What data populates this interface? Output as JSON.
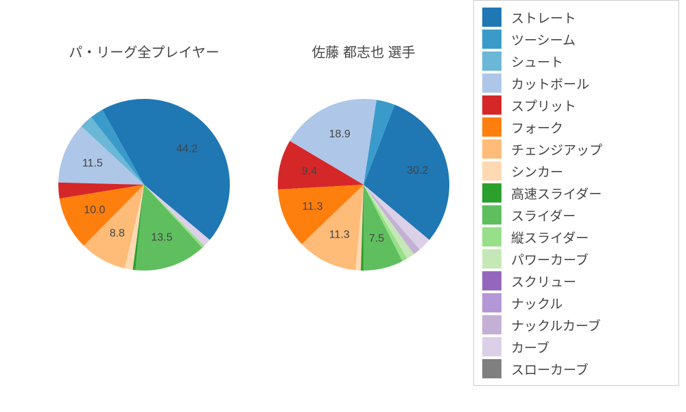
{
  "background_color": "#ffffff",
  "text_color": "#444444",
  "title_fontsize": 20,
  "label_fontsize": 16,
  "legend_fontsize": 19,
  "legend_border_color": "#cccccc",
  "pie_radius": 125,
  "pie_label_radius_factor": 0.65,
  "pie_min_label_value": 6.0,
  "pie_start_angle_deg": -40,
  "pies": [
    {
      "title": "パ・リーグ全プレイヤー",
      "slices": [
        {
          "value": 44.2,
          "color": "#1f77b4"
        },
        {
          "value": 2.5,
          "color": "#3a9bcb"
        },
        {
          "value": 2.5,
          "color": "#6bb7d6"
        },
        {
          "value": 11.5,
          "color": "#aec7e8"
        },
        {
          "value": 3.0,
          "color": "#d62728"
        },
        {
          "value": 10.0,
          "color": "#ff7f0e"
        },
        {
          "value": 8.8,
          "color": "#ffbb78"
        },
        {
          "value": 1.5,
          "color": "#ffd9b3"
        },
        {
          "value": 0.5,
          "color": "#2ca02c"
        },
        {
          "value": 13.5,
          "color": "#5fbf5f"
        },
        {
          "value": 0.5,
          "color": "#98df8a"
        },
        {
          "value": 0.0,
          "color": "#c5e8b7"
        },
        {
          "value": 0.0,
          "color": "#9467bd"
        },
        {
          "value": 0.0,
          "color": "#b497d6"
        },
        {
          "value": 0.0,
          "color": "#c5b0d5"
        },
        {
          "value": 1.5,
          "color": "#dcd0e8"
        },
        {
          "value": 0.0,
          "color": "#7f7f7f"
        }
      ]
    },
    {
      "title": "佐藤 都志也  選手",
      "slices": [
        {
          "value": 30.2,
          "color": "#1f77b4"
        },
        {
          "value": 3.5,
          "color": "#3a9bcb"
        },
        {
          "value": 0.0,
          "color": "#6bb7d6"
        },
        {
          "value": 18.9,
          "color": "#aec7e8"
        },
        {
          "value": 9.4,
          "color": "#d62728"
        },
        {
          "value": 11.3,
          "color": "#ff7f0e"
        },
        {
          "value": 11.3,
          "color": "#ffbb78"
        },
        {
          "value": 1.0,
          "color": "#ffd9b3"
        },
        {
          "value": 0.5,
          "color": "#2ca02c"
        },
        {
          "value": 7.5,
          "color": "#5fbf5f"
        },
        {
          "value": 1.0,
          "color": "#98df8a"
        },
        {
          "value": 1.5,
          "color": "#c5e8b7"
        },
        {
          "value": 0.0,
          "color": "#9467bd"
        },
        {
          "value": 0.0,
          "color": "#b497d6"
        },
        {
          "value": 1.4,
          "color": "#c5b0d5"
        },
        {
          "value": 2.5,
          "color": "#dcd0e8"
        },
        {
          "value": 0.0,
          "color": "#7f7f7f"
        }
      ]
    }
  ],
  "legend": {
    "items": [
      {
        "label": "ストレート",
        "color": "#1f77b4"
      },
      {
        "label": "ツーシーム",
        "color": "#3a9bcb"
      },
      {
        "label": "シュート",
        "color": "#6bb7d6"
      },
      {
        "label": "カットボール",
        "color": "#aec7e8"
      },
      {
        "label": "スプリット",
        "color": "#d62728"
      },
      {
        "label": "フォーク",
        "color": "#ff7f0e"
      },
      {
        "label": "チェンジアップ",
        "color": "#ffbb78"
      },
      {
        "label": "シンカー",
        "color": "#ffd9b3"
      },
      {
        "label": "高速スライダー",
        "color": "#2ca02c"
      },
      {
        "label": "スライダー",
        "color": "#5fbf5f"
      },
      {
        "label": "縦スライダー",
        "color": "#98df8a"
      },
      {
        "label": "パワーカーブ",
        "color": "#c5e8b7"
      },
      {
        "label": "スクリュー",
        "color": "#9467bd"
      },
      {
        "label": "ナックル",
        "color": "#b497d6"
      },
      {
        "label": "ナックルカーブ",
        "color": "#c5b0d5"
      },
      {
        "label": "カーブ",
        "color": "#dcd0e8"
      },
      {
        "label": "スローカーブ",
        "color": "#7f7f7f"
      }
    ]
  }
}
